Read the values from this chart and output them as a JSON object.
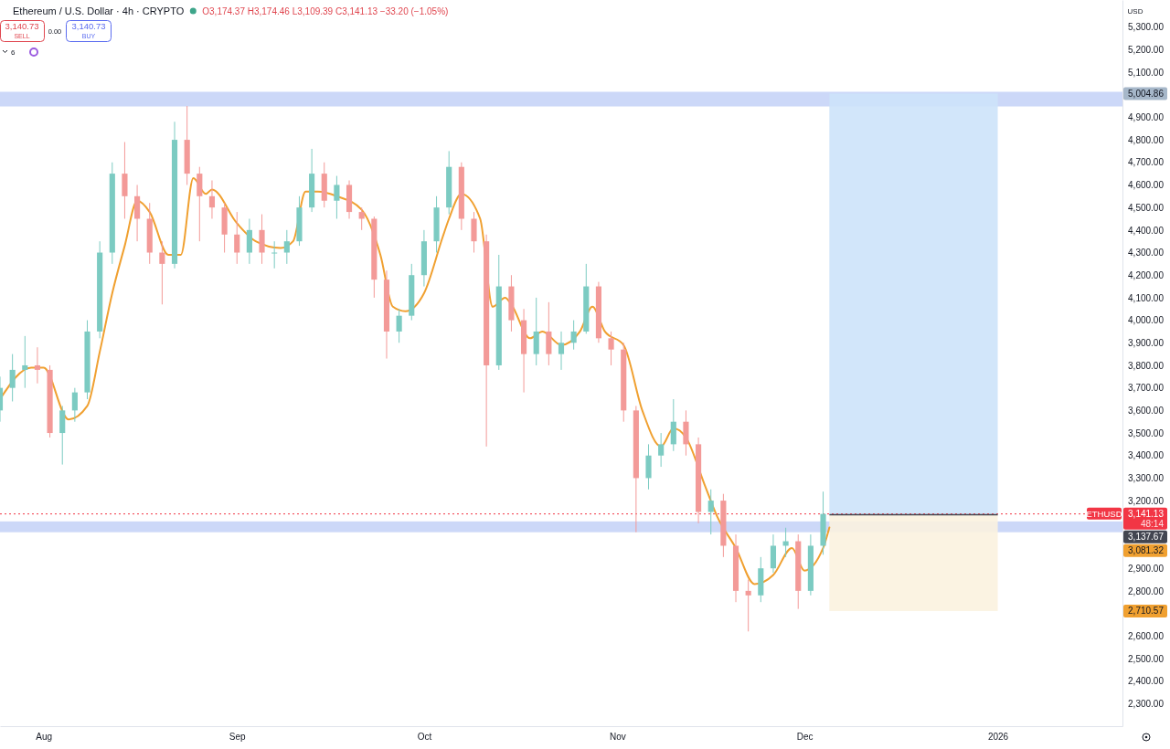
{
  "chart_data": {
    "type": "candlestick",
    "title": "Ethereum / U.S. Dollar · 4h · CRYPTO",
    "subtitle": "O3,174.37 H3,174.46 L3,109.39 C3,141.13 −33.20 (−1.05%)",
    "annotations": [
      "3,140.73",
      "SELL",
      "0.00",
      "3,140.73",
      "BUY",
      "6",
      "USD",
      "48:14",
      "5,004.86",
      "3,141.13",
      "3,137.67",
      "3,081.32",
      "2,710.57"
    ],
    "x": [
      "2025-07-25",
      "2025-07-27",
      "2025-07-29",
      "2025-07-31",
      "2025-08-02",
      "2025-08-04",
      "2025-08-06",
      "2025-08-08",
      "2025-08-10",
      "2025-08-12",
      "2025-08-14",
      "2025-08-16",
      "2025-08-18",
      "2025-08-20",
      "2025-08-22",
      "2025-08-24",
      "2025-08-26",
      "2025-08-28",
      "2025-08-30",
      "2025-09-01",
      "2025-09-03",
      "2025-09-05",
      "2025-09-07",
      "2025-09-09",
      "2025-09-11",
      "2025-09-13",
      "2025-09-15",
      "2025-09-17",
      "2025-09-19",
      "2025-09-21",
      "2025-09-23",
      "2025-09-25",
      "2025-09-27",
      "2025-09-29",
      "2025-10-01",
      "2025-10-03",
      "2025-10-05",
      "2025-10-07",
      "2025-10-09",
      "2025-10-11",
      "2025-10-13",
      "2025-10-15",
      "2025-10-17",
      "2025-10-19",
      "2025-10-21",
      "2025-10-23",
      "2025-10-25",
      "2025-10-27",
      "2025-10-29",
      "2025-10-31",
      "2025-11-02",
      "2025-11-04",
      "2025-11-06",
      "2025-11-08",
      "2025-11-10",
      "2025-11-12",
      "2025-11-14",
      "2025-11-16",
      "2025-11-18",
      "2025-11-20",
      "2025-11-22",
      "2025-11-24",
      "2025-11-26",
      "2025-11-28",
      "2025-11-30",
      "2025-12-02",
      "2025-12-04"
    ],
    "ohlc": [
      [
        3600,
        3750,
        3550,
        3700
      ],
      [
        3700,
        3850,
        3640,
        3780
      ],
      [
        3780,
        3930,
        3700,
        3800
      ],
      [
        3800,
        3880,
        3720,
        3780
      ],
      [
        3780,
        3800,
        3480,
        3500
      ],
      [
        3500,
        3620,
        3360,
        3600
      ],
      [
        3600,
        3700,
        3550,
        3680
      ],
      [
        3680,
        4000,
        3650,
        3950
      ],
      [
        3950,
        4350,
        3920,
        4300
      ],
      [
        4300,
        4700,
        4250,
        4650
      ],
      [
        4650,
        4790,
        4450,
        4550
      ],
      [
        4550,
        4600,
        4350,
        4450
      ],
      [
        4450,
        4520,
        4250,
        4300
      ],
      [
        4300,
        4350,
        4070,
        4250
      ],
      [
        4250,
        4880,
        4230,
        4800
      ],
      [
        4800,
        4950,
        4600,
        4650
      ],
      [
        4650,
        4680,
        4350,
        4550
      ],
      [
        4550,
        4620,
        4450,
        4500
      ],
      [
        4500,
        4520,
        4300,
        4380
      ],
      [
        4380,
        4480,
        4250,
        4300
      ],
      [
        4300,
        4450,
        4250,
        4400
      ],
      [
        4400,
        4470,
        4250,
        4300
      ],
      [
        4300,
        4350,
        4230,
        4300
      ],
      [
        4300,
        4400,
        4250,
        4350
      ],
      [
        4350,
        4550,
        4330,
        4500
      ],
      [
        4500,
        4760,
        4480,
        4650
      ],
      [
        4650,
        4700,
        4500,
        4530
      ],
      [
        4530,
        4640,
        4450,
        4600
      ],
      [
        4600,
        4620,
        4450,
        4480
      ],
      [
        4480,
        4500,
        4400,
        4450
      ],
      [
        4450,
        4460,
        4100,
        4180
      ],
      [
        4180,
        4220,
        3830,
        3950
      ],
      [
        3950,
        4050,
        3900,
        4020
      ],
      [
        4020,
        4250,
        4000,
        4200
      ],
      [
        4200,
        4400,
        4150,
        4350
      ],
      [
        4350,
        4550,
        4300,
        4500
      ],
      [
        4500,
        4750,
        4470,
        4680
      ],
      [
        4680,
        4700,
        4400,
        4450
      ],
      [
        4450,
        4480,
        4300,
        4350
      ],
      [
        4350,
        4380,
        3440,
        3800
      ],
      [
        3800,
        4290,
        3780,
        4150
      ],
      [
        4150,
        4200,
        3950,
        4000
      ],
      [
        4000,
        4050,
        3680,
        3850
      ],
      [
        3850,
        4100,
        3800,
        3950
      ],
      [
        3950,
        4080,
        3800,
        3850
      ],
      [
        3850,
        3950,
        3780,
        3900
      ],
      [
        3900,
        4000,
        3870,
        3950
      ],
      [
        3950,
        4250,
        3940,
        4150
      ],
      [
        4150,
        4170,
        3900,
        3920
      ],
      [
        3920,
        3950,
        3800,
        3870
      ],
      [
        3870,
        3900,
        3550,
        3600
      ],
      [
        3600,
        3620,
        3060,
        3300
      ],
      [
        3300,
        3450,
        3250,
        3400
      ],
      [
        3400,
        3500,
        3350,
        3450
      ],
      [
        3450,
        3650,
        3420,
        3550
      ],
      [
        3550,
        3600,
        3400,
        3450
      ],
      [
        3450,
        3480,
        3100,
        3150
      ],
      [
        3150,
        3250,
        3050,
        3200
      ],
      [
        3200,
        3230,
        2950,
        3000
      ],
      [
        3000,
        3050,
        2750,
        2800
      ],
      [
        2800,
        2850,
        2620,
        2780
      ],
      [
        2780,
        2950,
        2750,
        2900
      ],
      [
        2900,
        3050,
        2880,
        3000
      ],
      [
        3000,
        3080,
        2950,
        3020
      ],
      [
        3020,
        3050,
        2720,
        2800
      ],
      [
        2800,
        3050,
        2780,
        3000
      ],
      [
        3000,
        3240,
        2960,
        3141.13
      ]
    ],
    "series": [
      {
        "type": "line",
        "color": "#f0a030",
        "x": [
          "2025-07-25",
          "2025-07-30",
          "2025-08-01",
          "2025-08-05",
          "2025-08-08",
          "2025-08-10",
          "2025-08-12",
          "2025-08-14",
          "2025-08-16",
          "2025-08-18",
          "2025-08-21",
          "2025-08-23",
          "2025-08-25",
          "2025-08-27",
          "2025-08-28",
          "2025-09-01",
          "2025-09-04",
          "2025-09-08",
          "2025-09-10",
          "2025-09-12",
          "2025-09-14",
          "2025-09-17",
          "2025-09-21",
          "2025-09-24",
          "2025-09-26",
          "2025-09-28",
          "2025-10-01",
          "2025-10-04",
          "2025-10-05",
          "2025-10-07",
          "2025-10-10",
          "2025-10-12",
          "2025-10-14",
          "2025-10-15",
          "2025-10-18",
          "2025-10-20",
          "2025-10-23",
          "2025-10-26",
          "2025-10-28",
          "2025-10-30",
          "2025-11-02",
          "2025-11-05",
          "2025-11-08",
          "2025-11-10",
          "2025-11-12",
          "2025-11-15",
          "2025-11-17",
          "2025-11-20",
          "2025-11-23",
          "2025-11-26",
          "2025-11-29",
          "2025-12-01",
          "2025-12-04",
          "2025-12-05"
        ],
        "values": [
          3650,
          3790,
          3790,
          3560,
          3620,
          3860,
          4120,
          4330,
          4530,
          4480,
          4290,
          4290,
          4630,
          4560,
          4580,
          4430,
          4350,
          4320,
          4350,
          4570,
          4570,
          4550,
          4490,
          4290,
          4060,
          4040,
          4120,
          4370,
          4450,
          4560,
          4450,
          4060,
          4100,
          4070,
          3920,
          3950,
          3890,
          3950,
          4060,
          3950,
          3890,
          3600,
          3440,
          3520,
          3480,
          3270,
          3130,
          2990,
          2830,
          2870,
          2990,
          2890,
          2990,
          3081.32
        ]
      }
    ],
    "xlim": [
      "2025-07-25",
      "2026-01-21"
    ],
    "xticks": [
      {
        "value": "2025-08-01",
        "label": "Aug"
      },
      {
        "value": "2025-09-01",
        "label": "Sep"
      },
      {
        "value": "2025-10-01",
        "label": "Oct"
      },
      {
        "value": "2025-11-01",
        "label": "Nov"
      },
      {
        "value": "2025-12-01",
        "label": "Dec"
      },
      {
        "value": "2026-01-01",
        "label": "2026"
      }
    ],
    "ylim": [
      2200,
      5420
    ],
    "yticks": [
      {
        "value": 2300,
        "label": "2,300.00"
      },
      {
        "value": 2400,
        "label": "2,400.00"
      },
      {
        "value": 2500,
        "label": "2,500.00"
      },
      {
        "value": 2600,
        "label": "2,600.00"
      },
      {
        "value": 2800,
        "label": "2,800.00"
      },
      {
        "value": 2900,
        "label": "2,900.00"
      },
      {
        "value": 3200,
        "label": "3,200.00"
      },
      {
        "value": 3300,
        "label": "3,300.00"
      },
      {
        "value": 3400,
        "label": "3,400.00"
      },
      {
        "value": 3500,
        "label": "3,500.00"
      },
      {
        "value": 3600,
        "label": "3,600.00"
      },
      {
        "value": 3700,
        "label": "3,700.00"
      },
      {
        "value": 3800,
        "label": "3,800.00"
      },
      {
        "value": 3900,
        "label": "3,900.00"
      },
      {
        "value": 4000,
        "label": "4,000.00"
      },
      {
        "value": 4100,
        "label": "4,100.00"
      },
      {
        "value": 4200,
        "label": "4,200.00"
      },
      {
        "value": 4300,
        "label": "4,300.00"
      },
      {
        "value": 4400,
        "label": "4,400.00"
      },
      {
        "value": 4500,
        "label": "4,500.00"
      },
      {
        "value": 4600,
        "label": "4,600.00"
      },
      {
        "value": 4700,
        "label": "4,700.00"
      },
      {
        "value": 4800,
        "label": "4,800.00"
      },
      {
        "value": 4900,
        "label": "4,900.00"
      },
      {
        "value": 5100,
        "label": "5,100.00"
      },
      {
        "value": 5200,
        "label": "5,200.00"
      },
      {
        "value": 5300,
        "label": "5,300.00"
      }
    ],
    "bands": [
      {
        "axis": "y",
        "from": 4948,
        "to": 5013,
        "color": "#c9d6f8"
      },
      {
        "axis": "y",
        "from": 3060,
        "to": 3108,
        "color": "#c9d6f8"
      },
      {
        "axis": "y",
        "from": 3137.67,
        "to": 5004.86,
        "color": "#cde3f9"
      },
      {
        "axis": "y",
        "from": 3137.67,
        "to": 2710.57,
        "color": "#fbf2df"
      }
    ],
    "ref_lines": [
      {
        "axis": "y",
        "value": 3141.13,
        "label": "ETHUSD",
        "color": "#f23645",
        "line_style": "dotted"
      },
      {
        "axis": "y",
        "value": 3137.67,
        "color": "#434651",
        "line_style": "solid"
      }
    ]
  }
}
